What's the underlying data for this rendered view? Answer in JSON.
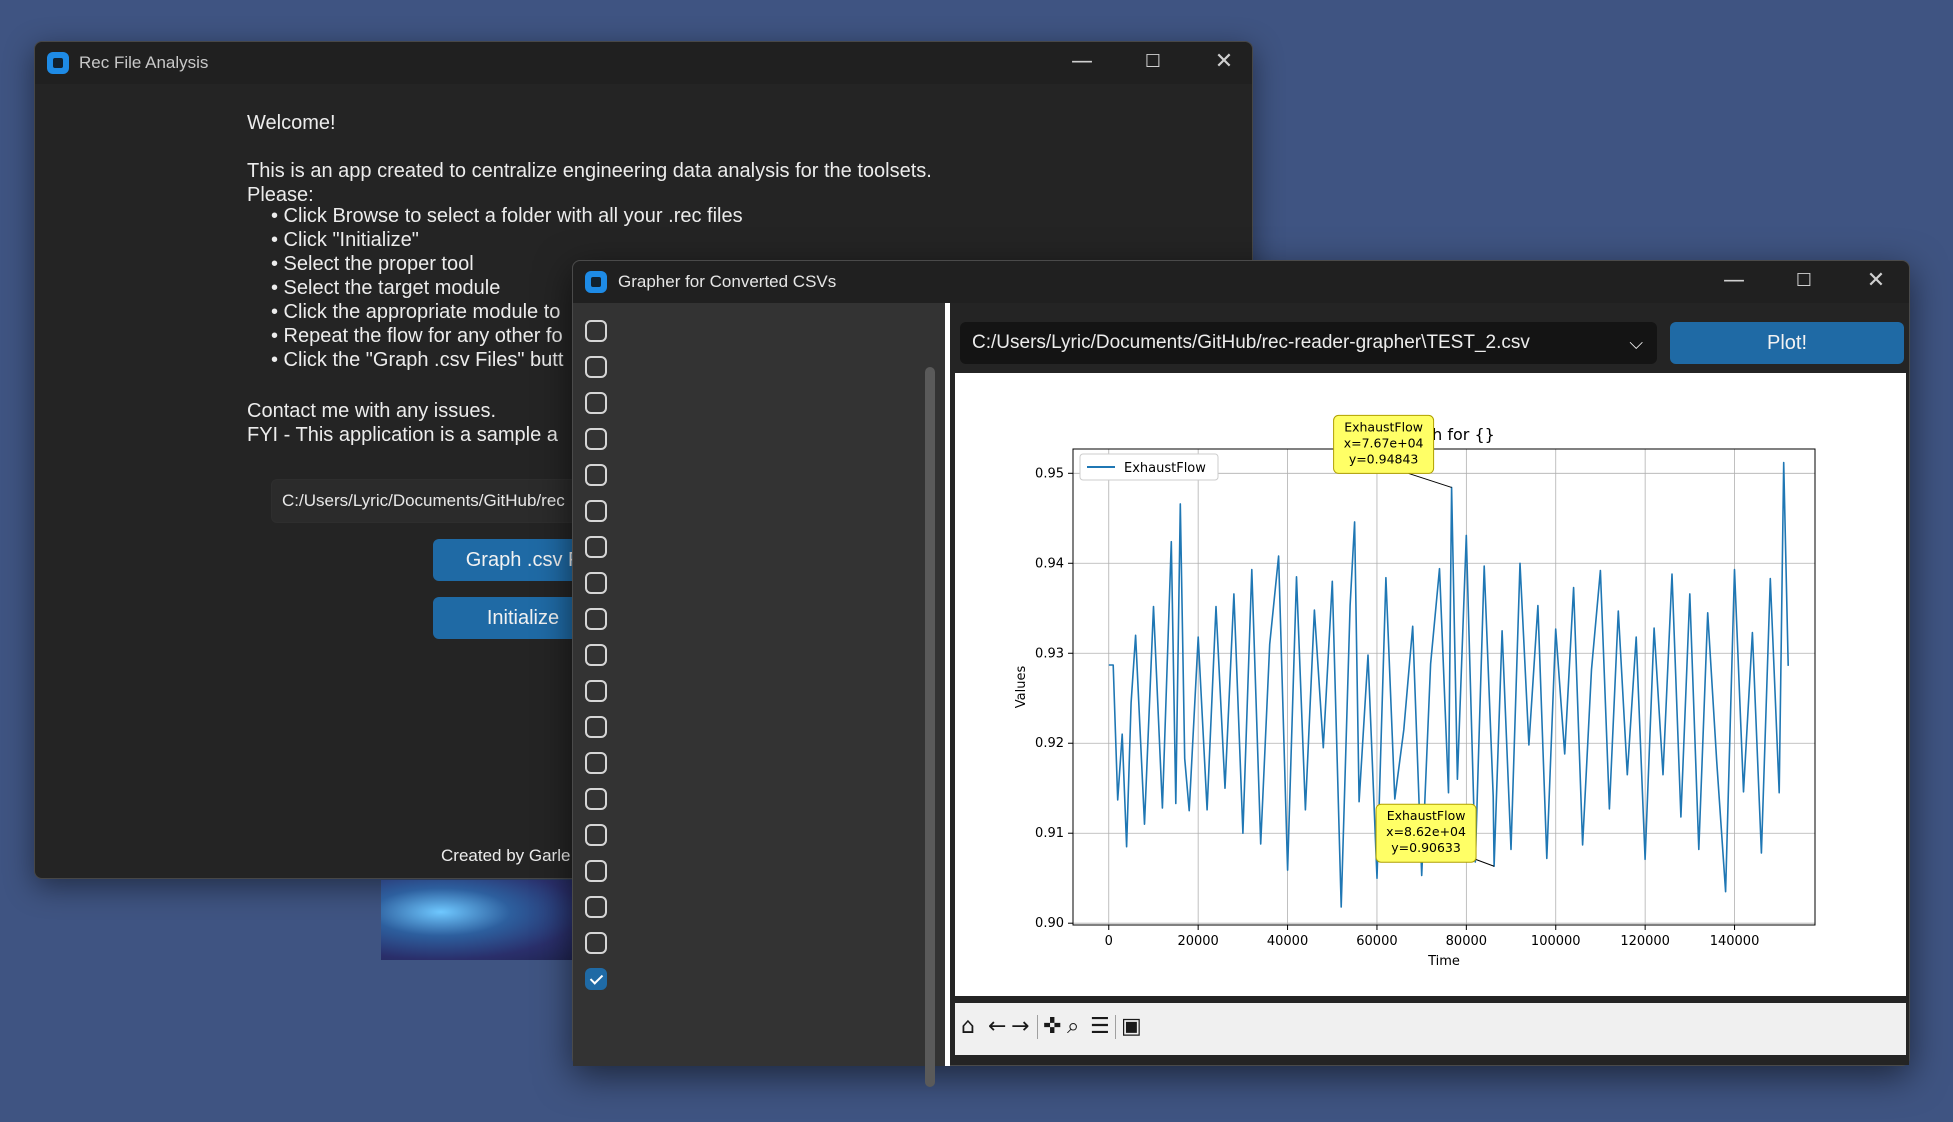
{
  "window1": {
    "title": "Rec File Analysis",
    "welcome": "Welcome!",
    "intro_line1": "This is an app created to centralize engineering data analysis for the toolsets.",
    "intro_line2": "Please:",
    "steps": [
      "• Click Browse to select a folder with all your .rec files",
      "• Click \"Initialize\"",
      "• Select the proper tool",
      "• Select the target module",
      "• Click the appropriate module to",
      "• Repeat the flow for any other fo",
      "• Click the \"Graph .csv Files\" butt"
    ],
    "contact": "Contact me with any issues.",
    "fyi": "FYI - This application is a sample a",
    "path_value": "C:/Users/Lyric/Documents/GitHub/rec",
    "graph_button": "Graph .csv F",
    "initialize_button": "Initialize",
    "footer": "Created by Garle"
  },
  "window2": {
    "title": "Grapher for Converted CSVs",
    "checkboxes": [
      false,
      false,
      false,
      false,
      false,
      false,
      false,
      false,
      false,
      false,
      false,
      false,
      false,
      false,
      false,
      false,
      false,
      false,
      true
    ],
    "file_select_value": "C:/Users/Lyric/Documents/GitHub/rec-reader-grapher\\TEST_2.csv",
    "plot_button": "Plot!",
    "toolbar_icons": [
      "home-icon",
      "back-arrow-icon",
      "forward-arrow-icon",
      "pan-icon",
      "zoom-icon",
      "configure-icon",
      "save-icon"
    ]
  },
  "chart_data": {
    "type": "line",
    "title": "Graph for {}",
    "xlabel": "Time",
    "ylabel": "Values",
    "xlim": [
      -8000,
      158000
    ],
    "ylim": [
      0.8998,
      0.9527
    ],
    "x_ticks": [
      "0",
      "20000",
      "40000",
      "60000",
      "80000",
      "100000",
      "120000",
      "140000"
    ],
    "y_ticks": [
      "0.90",
      "0.91",
      "0.92",
      "0.93",
      "0.94",
      "0.95"
    ],
    "grid": true,
    "legend_position": "top-left",
    "series": [
      {
        "name": "ExhaustFlow",
        "color": "#1f77b4",
        "x": [
          0,
          1000,
          2000,
          3000,
          4000,
          5000,
          6000,
          8000,
          10000,
          12000,
          14000,
          15000,
          16000,
          17000,
          18000,
          20000,
          22000,
          24000,
          26000,
          28000,
          30000,
          32000,
          34000,
          36000,
          38000,
          40000,
          42000,
          44000,
          46000,
          48000,
          50000,
          52000,
          54000,
          55000,
          56000,
          58000,
          60000,
          62000,
          64000,
          66000,
          68000,
          70000,
          72000,
          74000,
          76000,
          76700,
          78000,
          80000,
          82000,
          84000,
          86000,
          86200,
          88000,
          90000,
          92000,
          94000,
          96000,
          98000,
          100000,
          102000,
          104000,
          106000,
          108000,
          110000,
          112000,
          114000,
          116000,
          118000,
          120000,
          122000,
          124000,
          126000,
          128000,
          130000,
          132000,
          134000,
          136000,
          138000,
          140000,
          142000,
          144000,
          146000,
          148000,
          150000,
          151000,
          152000
        ],
        "y": [
          0.9287,
          0.9287,
          0.9137,
          0.921,
          0.9085,
          0.9245,
          0.932,
          0.911,
          0.9352,
          0.9128,
          0.9424,
          0.9133,
          0.9466,
          0.9183,
          0.9125,
          0.9318,
          0.9126,
          0.9352,
          0.915,
          0.9366,
          0.91,
          0.9393,
          0.9088,
          0.931,
          0.9408,
          0.9059,
          0.9385,
          0.9126,
          0.9348,
          0.9195,
          0.938,
          0.9018,
          0.9353,
          0.9446,
          0.9135,
          0.9298,
          0.905,
          0.9384,
          0.9138,
          0.9215,
          0.933,
          0.9053,
          0.9288,
          0.9394,
          0.9145,
          0.94843,
          0.916,
          0.9431,
          0.9068,
          0.9397,
          0.9141,
          0.90633,
          0.9325,
          0.9082,
          0.94,
          0.9198,
          0.9353,
          0.9072,
          0.9327,
          0.9188,
          0.9373,
          0.9087,
          0.9282,
          0.9392,
          0.9127,
          0.9347,
          0.9165,
          0.9318,
          0.9071,
          0.9328,
          0.9165,
          0.9388,
          0.9118,
          0.9366,
          0.9082,
          0.9345,
          0.918,
          0.9035,
          0.9393,
          0.9146,
          0.9323,
          0.9078,
          0.9383,
          0.9145,
          0.9512,
          0.9286
        ]
      }
    ],
    "annotations": [
      {
        "series": "ExhaustFlow",
        "x_text": "x=7.67e+04",
        "y_text": "y=0.94843",
        "x": 76700,
        "y": 0.94843
      },
      {
        "series": "ExhaustFlow",
        "x_text": "x=8.62e+04",
        "y_text": "y=0.90633",
        "x": 86200,
        "y": 0.90633
      }
    ]
  }
}
